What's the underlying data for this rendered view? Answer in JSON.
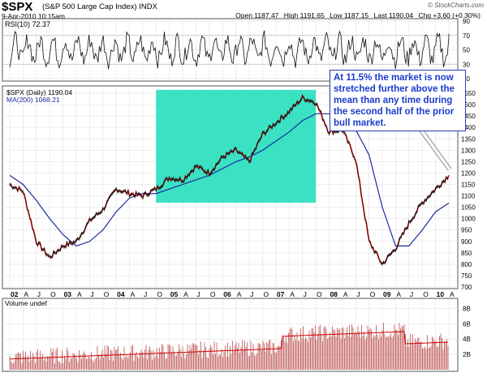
{
  "header": {
    "symbol": "$SPX",
    "description": "(S&P 500 Large Cap Index)",
    "exchange": "INDX",
    "date": "9-Apr-2010 10:15am",
    "open": "Open 1187.47",
    "high": "High 1191.65",
    "low": "Low 1187.15",
    "last": "Last 1190.04",
    "chg": "Chg +3.60 (+0.30%)",
    "brand": "© StockCharts.com"
  },
  "rsi_panel": {
    "label": "RSI(10) 72.37",
    "ticks": [
      "90",
      "70",
      "50",
      "30",
      "10"
    ]
  },
  "price_panel": {
    "legend_price": "$SPX (Daily) 1190.04",
    "legend_ma": "MA(200) 1068.21",
    "ticks": [
      "1550",
      "1500",
      "1450",
      "1400",
      "1350",
      "1300",
      "1250",
      "1200",
      "1150",
      "1100",
      "1050",
      "1000",
      "950",
      "900",
      "850",
      "800",
      "750",
      "700"
    ]
  },
  "annotation": "At 11.5% the market is now stretched further above the mean than any time during the second half of the prior bull market.",
  "volume_panel": {
    "label": "Volume undef",
    "ticks": [
      "8B",
      "6B",
      "4B",
      "2B"
    ]
  },
  "x_axis": {
    "labels": [
      "02",
      "A",
      "J",
      "O",
      "03",
      "A",
      "J",
      "O",
      "04",
      "A",
      "J",
      "O",
      "05",
      "A",
      "J",
      "O",
      "06",
      "A",
      "J",
      "O",
      "07",
      "A",
      "J",
      "O",
      "08",
      "A",
      "J",
      "O",
      "09",
      "A",
      "J",
      "O",
      "10",
      "A"
    ]
  },
  "colors": {
    "price": "#e00000",
    "ma": "#1c2c9e",
    "highlight": "#2fe0c0",
    "annotation": "#1a3bcc"
  },
  "chart_data": [
    {
      "type": "line",
      "title": "$SPX (Daily)",
      "x": [
        "2002-01",
        "2002-04",
        "2002-07",
        "2002-10",
        "2003-01",
        "2003-04",
        "2003-07",
        "2003-10",
        "2004-01",
        "2004-04",
        "2004-07",
        "2004-10",
        "2005-01",
        "2005-04",
        "2005-07",
        "2005-10",
        "2006-01",
        "2006-04",
        "2006-07",
        "2006-10",
        "2007-01",
        "2007-04",
        "2007-07",
        "2007-10",
        "2008-01",
        "2008-04",
        "2008-07",
        "2008-10",
        "2009-01",
        "2009-04",
        "2009-07",
        "2009-10",
        "2010-01",
        "2010-04"
      ],
      "series": [
        {
          "name": "$SPX (Daily)",
          "values": [
            1150,
            1120,
            900,
            830,
            880,
            900,
            990,
            1040,
            1130,
            1110,
            1100,
            1130,
            1180,
            1170,
            1230,
            1200,
            1270,
            1300,
            1250,
            1370,
            1420,
            1470,
            1530,
            1510,
            1380,
            1390,
            1260,
            900,
            800,
            870,
            980,
            1070,
            1130,
            1190
          ]
        },
        {
          "name": "MA(200)",
          "values": [
            1190,
            1150,
            1080,
            1000,
            930,
            880,
            900,
            950,
            1030,
            1090,
            1110,
            1110,
            1130,
            1150,
            1170,
            1190,
            1220,
            1250,
            1270,
            1300,
            1340,
            1380,
            1430,
            1460,
            1460,
            1430,
            1390,
            1280,
            1050,
            880,
            880,
            950,
            1030,
            1068
          ]
        }
      ],
      "ylim": [
        700,
        1575
      ],
      "highlight": {
        "x0": "2004-10",
        "x1": "2007-10",
        "y0": 1070,
        "y1": 1565
      }
    },
    {
      "type": "line",
      "title": "RSI(10)",
      "ylim": [
        10,
        90
      ],
      "last_value": 72.37
    },
    {
      "type": "bar",
      "title": "Volume",
      "ylim": [
        0,
        9
      ]
    }
  ]
}
